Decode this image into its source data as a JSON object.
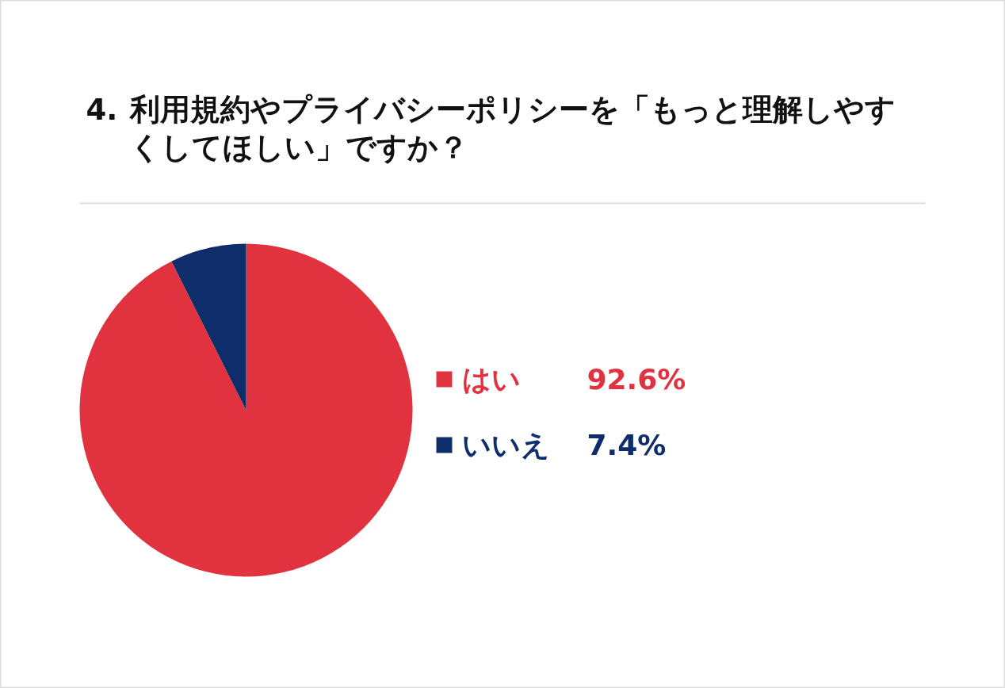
{
  "chart_data": {
    "type": "pie",
    "title": "4. 利用規約やプライバシーポリシーを「もっと理解しやすくしてほしい」ですか？",
    "categories": [
      "はい",
      "いいえ"
    ],
    "values": [
      92.6,
      7.4
    ],
    "colors": [
      "#e1333f",
      "#0f2d6a"
    ],
    "value_labels": [
      "92.6%",
      "7.4%"
    ],
    "legend": "right"
  }
}
